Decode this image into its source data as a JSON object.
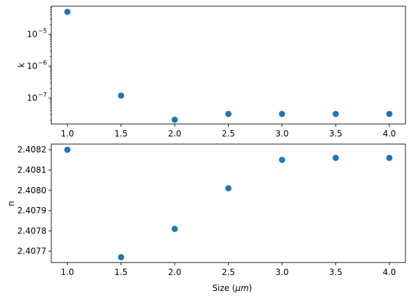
{
  "chart_data": [
    {
      "type": "scatter",
      "title": "",
      "xlabel": "",
      "ylabel": "k",
      "yscale": "log",
      "color": "#1f77b4",
      "grid": false,
      "x": [
        1.0,
        1.5,
        2.0,
        2.5,
        3.0,
        3.5,
        4.0
      ],
      "y": [
        5e-05,
        1.2e-07,
        2.1e-08,
        3.2e-08,
        3.2e-08,
        3.2e-08,
        3.2e-08
      ],
      "xticks": [
        "1.0",
        "1.5",
        "2.0",
        "2.5",
        "3.0",
        "3.5",
        "4.0"
      ],
      "yticks": [
        {
          "value": 1e-05,
          "mantissa": "10",
          "exp": "−5"
        },
        {
          "value": 1e-06,
          "mantissa": "10",
          "exp": "−6"
        },
        {
          "value": 1e-07,
          "mantissa": "10",
          "exp": "−7"
        }
      ],
      "xlim": [
        0.85,
        4.15
      ],
      "ylim": [
        1.55e-08,
        7.5e-05
      ]
    },
    {
      "type": "scatter",
      "title": "",
      "xlabel": "Size (",
      "xlabel_unit": "μm",
      "xlabel_end": ")",
      "ylabel": "n",
      "color": "#1f77b4",
      "grid": false,
      "x": [
        1.0,
        1.5,
        2.0,
        2.5,
        3.0,
        3.5,
        4.0
      ],
      "y": [
        2.4082,
        2.40767,
        2.40781,
        2.40801,
        2.40815,
        2.40816,
        2.40816
      ],
      "xticks": [
        "1.0",
        "1.5",
        "2.0",
        "2.5",
        "3.0",
        "3.5",
        "4.0"
      ],
      "yticks": [
        "2.4077",
        "2.4078",
        "2.4079",
        "2.4080",
        "2.4081",
        "2.4082"
      ],
      "xlim": [
        0.85,
        4.15
      ],
      "ylim": [
        2.407644,
        2.408228
      ]
    }
  ]
}
